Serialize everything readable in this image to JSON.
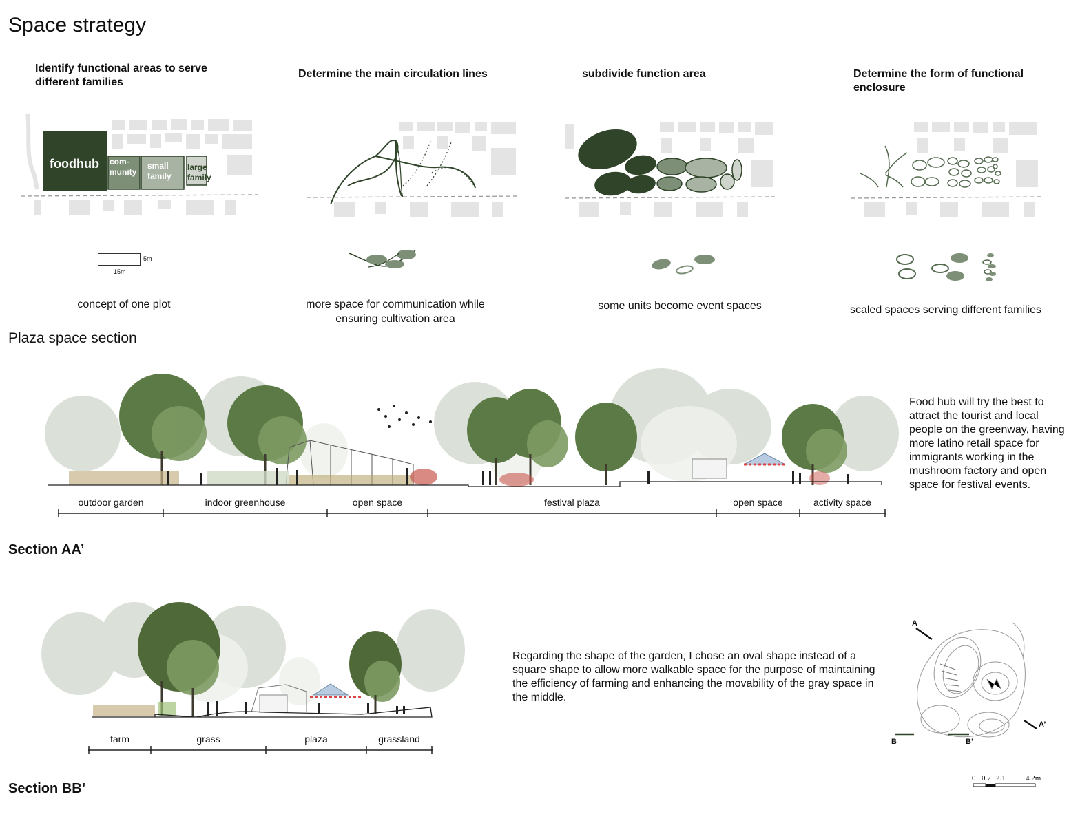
{
  "page": {
    "title": "Space strategy",
    "plaza_heading": "Plaza space section"
  },
  "steps": [
    {
      "title": "Identify functional areas to serve different families",
      "blocks": {
        "foodhub": "foodhub",
        "community": "com-\nmunity",
        "small_family": "small\nfamily",
        "large_family": "large\nfamily"
      },
      "scale": {
        "height": "5m",
        "width": "15m"
      },
      "caption": "concept of one plot"
    },
    {
      "title": "Determine the main circulation lines",
      "caption": "more space for communication while ensuring cultivation area"
    },
    {
      "title": "subdivide function area",
      "caption": "some units become event spaces"
    },
    {
      "title": "Determine the form of functional enclosure",
      "caption": "scaled spaces serving different families"
    }
  ],
  "section_aa": {
    "title": "Section AA’",
    "zones": [
      "outdoor garden",
      "indoor greenhouse",
      "open space",
      "festival plaza",
      "open space",
      "activity space"
    ],
    "description": "Food hub will try the best to attract the tourist and local people on the greenway, having more latino retail space for immigrants working in the mushroom factory and open space for festival events."
  },
  "section_bb": {
    "title": "Section BB’",
    "zones": [
      "farm",
      "grass",
      "plaza",
      "grassland"
    ],
    "description": "Regarding the shape of the garden, I chose an oval shape instead of a square shape to allow more walkable space for the purpose of maintaining the efficiency of farming and enhancing the movability of the gray space in the middle."
  },
  "key_plan": {
    "markers": {
      "a": "A",
      "a_prime": "A’",
      "b": "B",
      "b_prime": "B’"
    },
    "scale_ticks": [
      "0",
      "0.7",
      "2.1",
      "4.2m"
    ]
  },
  "colors": {
    "dark_green": "#2f4429",
    "mid_green": "#7d8f77",
    "light_green": "#a8b3a3",
    "grey_block": "#d9d9d9"
  }
}
